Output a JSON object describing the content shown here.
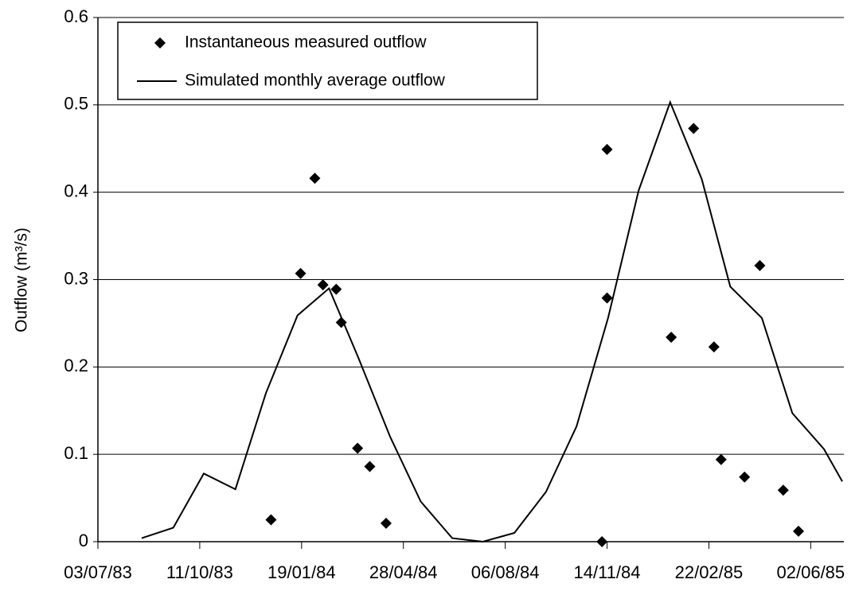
{
  "chart_data": {
    "type": "scatter-line",
    "y_label": "Outflow (m³/s)",
    "xlim": [
      "03/07/83",
      "03/07/85"
    ],
    "xticks": [
      "03/07/83",
      "11/10/83",
      "19/01/84",
      "28/04/84",
      "06/08/84",
      "14/11/84",
      "22/02/85",
      "02/06/85"
    ],
    "ylim": [
      0,
      0.6
    ],
    "yticks": [
      0,
      0.1,
      0.2,
      0.3,
      0.4,
      0.5,
      0.6
    ],
    "grid": true,
    "legend": "top-left",
    "series": [
      {
        "name": "Instantaneous measured outflow",
        "kind": "scatter",
        "color": "#000000",
        "x": [
          "20/12/83",
          "18/01/84",
          "01/02/84",
          "09/02/84",
          "22/02/84",
          "27/02/84",
          "14/03/84",
          "26/03/84",
          "11/04/84",
          "09/11/84",
          "14/11/84",
          "14/11/84",
          "16/01/85",
          "07/02/85",
          "27/02/85",
          "06/03/85",
          "29/03/85",
          "13/04/85",
          "06/05/85",
          "21/05/85"
        ],
        "values": [
          0.025,
          0.307,
          0.416,
          0.294,
          0.289,
          0.251,
          0.107,
          0.086,
          0.021,
          0.0,
          0.449,
          0.279,
          0.234,
          0.473,
          0.223,
          0.094,
          0.074,
          0.316,
          0.059,
          0.012
        ]
      },
      {
        "name": "Simulated monthly average outflow",
        "kind": "line",
        "color": "#000000",
        "x": [
          "15/08/83",
          "15/09/83",
          "15/10/83",
          "15/11/83",
          "15/12/83",
          "15/01/84",
          "15/02/84",
          "15/03/84",
          "15/04/84",
          "15/05/84",
          "15/06/84",
          "15/07/84",
          "15/08/84",
          "15/09/84",
          "15/10/84",
          "15/11/84",
          "15/12/84",
          "15/01/85",
          "15/02/85",
          "15/03/85",
          "15/04/85",
          "15/05/85",
          "15/06/85",
          "03/07/85"
        ],
        "values": [
          0.004,
          0.016,
          0.078,
          0.06,
          0.17,
          0.259,
          0.29,
          0.21,
          0.12,
          0.046,
          0.004,
          0.0,
          0.01,
          0.057,
          0.132,
          0.256,
          0.402,
          0.503,
          0.415,
          0.292,
          0.256,
          0.147,
          0.106,
          0.069
        ]
      }
    ]
  }
}
